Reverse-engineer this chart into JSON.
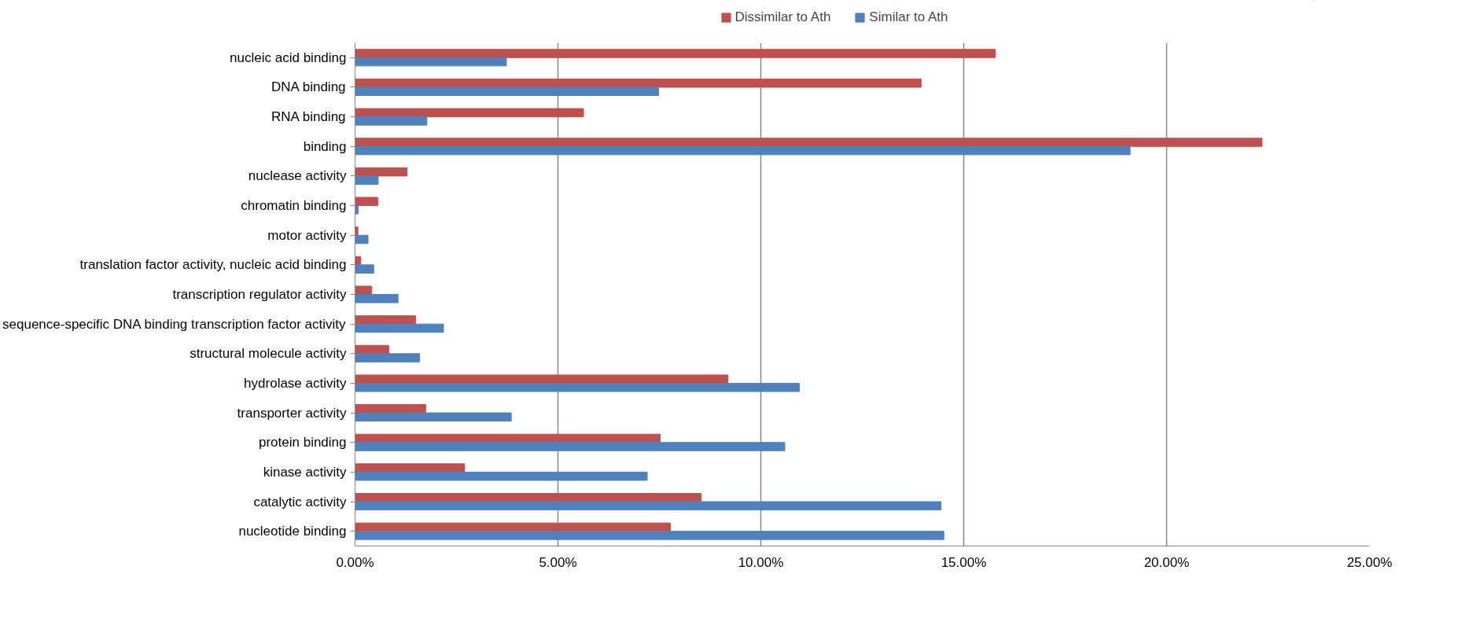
{
  "chart_data": {
    "type": "bar",
    "orientation": "horizontal",
    "categories": [
      "nucleic acid binding",
      "DNA binding",
      "RNA binding",
      "binding",
      "nuclease activity",
      "chromatin binding",
      "motor activity",
      "translation factor activity, nucleic acid binding",
      "transcription regulator activity",
      "sequence-specific DNA binding transcription factor activity",
      "structural molecule activity",
      "hydrolase activity",
      "transporter activity",
      "protein binding",
      "kinase activity",
      "catalytic activity",
      "nucleotide binding"
    ],
    "series": [
      {
        "name": "Dissimilar to Ath",
        "color": "#c0504d",
        "values": [
          15.78,
          13.95,
          5.63,
          22.35,
          1.28,
          0.56,
          0.07,
          0.14,
          0.41,
          1.49,
          0.83,
          9.19,
          1.74,
          7.52,
          2.7,
          8.53,
          7.77
        ]
      },
      {
        "name": "Similar to Ath",
        "color": "#4f81bd",
        "values": [
          3.73,
          7.48,
          1.77,
          19.1,
          0.57,
          0.08,
          0.32,
          0.46,
          1.06,
          2.18,
          1.59,
          10.95,
          3.85,
          10.59,
          7.2,
          14.44,
          14.51
        ]
      }
    ],
    "xlim": [
      0,
      25
    ],
    "xticks": [
      {
        "value": 0,
        "label": "0.00%"
      },
      {
        "value": 5,
        "label": "5.00%"
      },
      {
        "value": 10,
        "label": "10.00%"
      },
      {
        "value": 15,
        "label": "15.00%"
      },
      {
        "value": 20,
        "label": "20.00%"
      },
      {
        "value": 25,
        "label": "25.00%"
      }
    ],
    "grid": "x",
    "legend": "top"
  }
}
